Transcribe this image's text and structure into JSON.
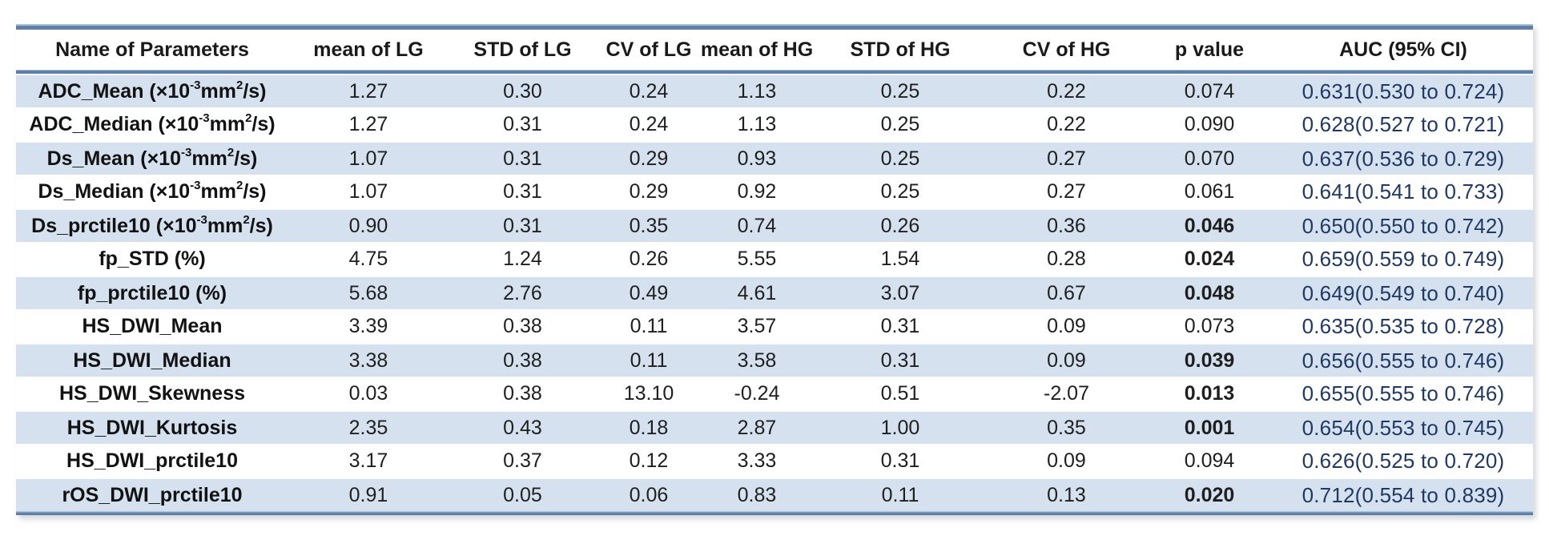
{
  "table": {
    "headers": [
      "Name of Parameters",
      "mean of LG",
      "STD of LG",
      "CV of LG",
      "mean of HG",
      "STD of HG",
      "CV of HG",
      "p value",
      "AUC (95% CI)"
    ],
    "colors": {
      "band": "#d6e1f0",
      "rule": "#5f7ea8",
      "rule_highlight": "#aac1da",
      "auc_text": "#1f3864",
      "text": "#1a1a1a"
    },
    "rows": [
      {
        "name": [
          {
            "t": "ADC_Mean (×10",
            "sup": false
          },
          {
            "t": "-3",
            "sup": true
          },
          {
            "t": " mm",
            "sup": false
          },
          {
            "t": "2",
            "sup": true
          },
          {
            "t": "/s)",
            "sup": false
          }
        ],
        "values": [
          "1.27",
          "0.30",
          "0.24",
          "1.13",
          "0.25",
          "0.22"
        ],
        "p": "0.074",
        "p_bold": false,
        "auc": "0.631(0.530 to 0.724)"
      },
      {
        "name": [
          {
            "t": "ADC_Median (×10",
            "sup": false
          },
          {
            "t": "-3",
            "sup": true
          },
          {
            "t": " mm",
            "sup": false
          },
          {
            "t": "2",
            "sup": true
          },
          {
            "t": "/s)",
            "sup": false
          }
        ],
        "values": [
          "1.27",
          "0.31",
          "0.24",
          "1.13",
          "0.25",
          "0.22"
        ],
        "p": "0.090",
        "p_bold": false,
        "auc": "0.628(0.527 to 0.721)"
      },
      {
        "name": [
          {
            "t": "Ds_Mean (×10",
            "sup": false
          },
          {
            "t": "-3",
            "sup": true
          },
          {
            "t": " mm",
            "sup": false
          },
          {
            "t": "2",
            "sup": true
          },
          {
            "t": "/s)",
            "sup": false
          }
        ],
        "values": [
          "1.07",
          "0.31",
          "0.29",
          "0.93",
          "0.25",
          "0.27"
        ],
        "p": "0.070",
        "p_bold": false,
        "auc": "0.637(0.536 to 0.729)"
      },
      {
        "name": [
          {
            "t": "Ds_Median (×10",
            "sup": false
          },
          {
            "t": "-3",
            "sup": true
          },
          {
            "t": " mm",
            "sup": false
          },
          {
            "t": "2",
            "sup": true
          },
          {
            "t": "/s)",
            "sup": false
          }
        ],
        "values": [
          "1.07",
          "0.31",
          "0.29",
          "0.92",
          "0.25",
          "0.27"
        ],
        "p": "0.061",
        "p_bold": false,
        "auc": "0.641(0.541 to 0.733)"
      },
      {
        "name": [
          {
            "t": "Ds_prctile10 (×10",
            "sup": false
          },
          {
            "t": "-3",
            "sup": true
          },
          {
            "t": " mm",
            "sup": false
          },
          {
            "t": "2",
            "sup": true
          },
          {
            "t": "/s)",
            "sup": false
          }
        ],
        "values": [
          "0.90",
          "0.31",
          "0.35",
          "0.74",
          "0.26",
          "0.36"
        ],
        "p": "0.046",
        "p_bold": true,
        "auc": "0.650(0.550 to 0.742)"
      },
      {
        "name": [
          {
            "t": "fp_STD (%)",
            "sup": false
          }
        ],
        "values": [
          "4.75",
          "1.24",
          "0.26",
          "5.55",
          "1.54",
          "0.28"
        ],
        "p": "0.024",
        "p_bold": true,
        "auc": "0.659(0.559 to 0.749)"
      },
      {
        "name": [
          {
            "t": "fp_prctile10 (%)",
            "sup": false
          }
        ],
        "values": [
          "5.68",
          "2.76",
          "0.49",
          "4.61",
          "3.07",
          "0.67"
        ],
        "p": "0.048",
        "p_bold": true,
        "auc": "0.649(0.549 to 0.740)"
      },
      {
        "name": [
          {
            "t": "HS_DWI_Mean",
            "sup": false
          }
        ],
        "values": [
          "3.39",
          "0.38",
          "0.11",
          "3.57",
          "0.31",
          "0.09"
        ],
        "p": "0.073",
        "p_bold": false,
        "auc": "0.635(0.535 to 0.728)"
      },
      {
        "name": [
          {
            "t": "HS_DWI_Median",
            "sup": false
          }
        ],
        "values": [
          "3.38",
          "0.38",
          "0.11",
          "3.58",
          "0.31",
          "0.09"
        ],
        "p": "0.039",
        "p_bold": true,
        "auc": "0.656(0.555 to 0.746)"
      },
      {
        "name": [
          {
            "t": "HS_DWI_Skewness",
            "sup": false
          }
        ],
        "values": [
          "0.03",
          "0.38",
          "13.10",
          "-0.24",
          "0.51",
          "-2.07"
        ],
        "p": "0.013",
        "p_bold": true,
        "auc": "0.655(0.555 to 0.746)"
      },
      {
        "name": [
          {
            "t": "HS_DWI_Kurtosis",
            "sup": false
          }
        ],
        "values": [
          "2.35",
          "0.43",
          "0.18",
          "2.87",
          "1.00",
          "0.35"
        ],
        "p": "0.001",
        "p_bold": true,
        "auc": "0.654(0.553 to 0.745)"
      },
      {
        "name": [
          {
            "t": "HS_DWI_prctile10",
            "sup": false
          }
        ],
        "values": [
          "3.17",
          "0.37",
          "0.12",
          "3.33",
          "0.31",
          "0.09"
        ],
        "p": "0.094",
        "p_bold": false,
        "auc": "0.626(0.525 to 0.720)"
      },
      {
        "name": [
          {
            "t": "rOS_DWI_prctile10",
            "sup": false
          }
        ],
        "values": [
          "0.91",
          "0.05",
          "0.06",
          "0.83",
          "0.11",
          "0.13"
        ],
        "p": "0.020",
        "p_bold": true,
        "auc": "0.712(0.554 to 0.839)"
      }
    ]
  },
  "chart_data": {
    "type": "table",
    "title": "",
    "columns": [
      "Name of Parameters",
      "mean of LG",
      "STD of LG",
      "CV of LG",
      "mean of HG",
      "STD of HG",
      "CV of HG",
      "p value",
      "AUC (95% CI)"
    ],
    "rows": [
      [
        "ADC_Mean (×10-3 mm2/s)",
        1.27,
        0.3,
        0.24,
        1.13,
        0.25,
        0.22,
        0.074,
        "0.631(0.530 to 0.724)"
      ],
      [
        "ADC_Median (×10-3 mm2/s)",
        1.27,
        0.31,
        0.24,
        1.13,
        0.25,
        0.22,
        0.09,
        "0.628(0.527 to 0.721)"
      ],
      [
        "Ds_Mean (×10-3 mm2/s)",
        1.07,
        0.31,
        0.29,
        0.93,
        0.25,
        0.27,
        0.07,
        "0.637(0.536 to 0.729)"
      ],
      [
        "Ds_Median (×10-3 mm2/s)",
        1.07,
        0.31,
        0.29,
        0.92,
        0.25,
        0.27,
        0.061,
        "0.641(0.541 to 0.733)"
      ],
      [
        "Ds_prctile10 (×10-3 mm2/s)",
        0.9,
        0.31,
        0.35,
        0.74,
        0.26,
        0.36,
        0.046,
        "0.650(0.550 to 0.742)"
      ],
      [
        "fp_STD (%)",
        4.75,
        1.24,
        0.26,
        5.55,
        1.54,
        0.28,
        0.024,
        "0.659(0.559 to 0.749)"
      ],
      [
        "fp_prctile10 (%)",
        5.68,
        2.76,
        0.49,
        4.61,
        3.07,
        0.67,
        0.048,
        "0.649(0.549 to 0.740)"
      ],
      [
        "HS_DWI_Mean",
        3.39,
        0.38,
        0.11,
        3.57,
        0.31,
        0.09,
        0.073,
        "0.635(0.535 to 0.728)"
      ],
      [
        "HS_DWI_Median",
        3.38,
        0.38,
        0.11,
        3.58,
        0.31,
        0.09,
        0.039,
        "0.656(0.555 to 0.746)"
      ],
      [
        "HS_DWI_Skewness",
        0.03,
        0.38,
        13.1,
        -0.24,
        0.51,
        -2.07,
        0.013,
        "0.655(0.555 to 0.746)"
      ],
      [
        "HS_DWI_Kurtosis",
        2.35,
        0.43,
        0.18,
        2.87,
        1.0,
        0.35,
        0.001,
        "0.654(0.553 to 0.745)"
      ],
      [
        "HS_DWI_prctile10",
        3.17,
        0.37,
        0.12,
        3.33,
        0.31,
        0.09,
        0.094,
        "0.626(0.525 to 0.720)"
      ],
      [
        "rOS_DWI_prctile10",
        0.91,
        0.05,
        0.06,
        0.83,
        0.11,
        0.13,
        0.02,
        "0.712(0.554 to 0.839)"
      ]
    ],
    "notes": "Bold p values in source: 0.046, 0.024, 0.048, 0.039, 0.013, 0.001, 0.020; AUC column rendered in navy #1f3864; banded rows are odd rows (1st, 3rd, ...)."
  }
}
